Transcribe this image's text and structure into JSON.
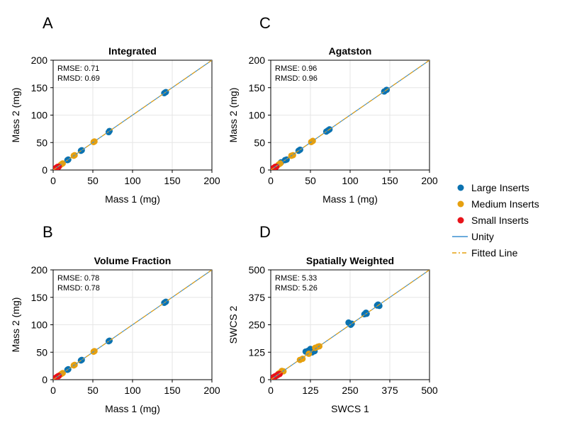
{
  "colors": {
    "large": "#0b72b0",
    "medium": "#e6a00f",
    "small": "#e8131a",
    "unity": "#3b8fd0",
    "fitted": "#e6a00f"
  },
  "legend": {
    "entries": [
      {
        "key": "large",
        "label": "Large Inserts",
        "kind": "marker"
      },
      {
        "key": "medium",
        "label": "Medium Inserts",
        "kind": "marker"
      },
      {
        "key": "small",
        "label": "Small Inserts",
        "kind": "marker"
      },
      {
        "key": "unity",
        "label": "Unity",
        "kind": "line"
      },
      {
        "key": "fitted",
        "label": "Fitted Line",
        "kind": "dashdot"
      }
    ]
  },
  "chart_data": [
    {
      "panel_label": "A",
      "type": "scatter",
      "title": "Integrated",
      "xlabel": "Mass 1 (mg)",
      "ylabel": "Mass 2 (mg)",
      "xlim": [
        0,
        200
      ],
      "ylim": [
        0,
        200
      ],
      "xticks": [
        0,
        50,
        100,
        150,
        200
      ],
      "yticks": [
        0,
        50,
        100,
        150,
        200
      ],
      "stats": [
        "RMSE: 0.71",
        "RMSD: 0.69"
      ],
      "grid": true,
      "series": [
        {
          "group": "large",
          "name": "Large Inserts",
          "x": [
            18,
            19,
            35,
            36,
            70,
            71,
            140,
            142
          ],
          "y": [
            18,
            19,
            35,
            36,
            69,
            71,
            140,
            142
          ]
        },
        {
          "group": "medium",
          "name": "Medium Inserts",
          "x": [
            10,
            12,
            26,
            27,
            51,
            52
          ],
          "y": [
            10,
            12,
            26,
            27,
            51,
            52
          ]
        },
        {
          "group": "small",
          "name": "Small Inserts",
          "x": [
            2,
            3,
            4,
            5,
            6,
            7
          ],
          "y": [
            2,
            3,
            4,
            5,
            6,
            6
          ]
        }
      ]
    },
    {
      "panel_label": "C",
      "type": "scatter",
      "title": "Agatston",
      "xlabel": "Mass 1 (mg)",
      "ylabel": "Mass 2 (mg)",
      "xlim": [
        0,
        200
      ],
      "ylim": [
        0,
        200
      ],
      "xticks": [
        0,
        50,
        100,
        150,
        200
      ],
      "yticks": [
        0,
        50,
        100,
        150,
        200
      ],
      "stats": [
        "RMSE: 0.96",
        "RMSD: 0.96"
      ],
      "grid": true,
      "series": [
        {
          "group": "large",
          "name": "Large Inserts",
          "x": [
            13,
            18,
            20,
            35,
            37,
            70,
            72,
            74,
            143,
            146
          ],
          "y": [
            14,
            18,
            19,
            35,
            37,
            70,
            72,
            74,
            143,
            146
          ]
        },
        {
          "group": "medium",
          "name": "Medium Inserts",
          "x": [
            10,
            12,
            26,
            28,
            51,
            53
          ],
          "y": [
            10,
            12,
            26,
            27,
            51,
            53
          ]
        },
        {
          "group": "small",
          "name": "Small Inserts",
          "x": [
            2,
            3,
            4,
            5,
            6,
            7
          ],
          "y": [
            2,
            3,
            4,
            5,
            6,
            6
          ]
        }
      ]
    },
    {
      "panel_label": "B",
      "type": "scatter",
      "title": "Volume Fraction",
      "xlabel": "Mass 1 (mg)",
      "ylabel": "Mass 2 (mg)",
      "xlim": [
        0,
        200
      ],
      "ylim": [
        0,
        200
      ],
      "xticks": [
        0,
        50,
        100,
        150,
        200
      ],
      "yticks": [
        0,
        50,
        100,
        150,
        200
      ],
      "stats": [
        "RMSE: 0.78",
        "RMSD: 0.78"
      ],
      "grid": true,
      "series": [
        {
          "group": "large",
          "name": "Large Inserts",
          "x": [
            18,
            19,
            35,
            36,
            70,
            71,
            140,
            142
          ],
          "y": [
            18,
            19,
            35,
            36,
            70,
            71,
            140,
            142
          ]
        },
        {
          "group": "medium",
          "name": "Medium Inserts",
          "x": [
            10,
            12,
            26,
            27,
            51,
            52
          ],
          "y": [
            10,
            12,
            26,
            27,
            51,
            52
          ]
        },
        {
          "group": "small",
          "name": "Small Inserts",
          "x": [
            2,
            3,
            4,
            5,
            6,
            7
          ],
          "y": [
            2,
            3,
            4,
            5,
            6,
            7
          ]
        }
      ]
    },
    {
      "panel_label": "D",
      "type": "scatter",
      "title": "Spatially Weighted",
      "xlabel": "SWCS 1",
      "ylabel": "SWCS 2",
      "xlim": [
        0,
        500
      ],
      "ylim": [
        0,
        500
      ],
      "xticks": [
        0,
        125,
        250,
        375,
        500
      ],
      "yticks": [
        0,
        125,
        250,
        375,
        500
      ],
      "stats": [
        "RMSE: 5.33",
        "RMSD: 5.26"
      ],
      "grid": true,
      "series": [
        {
          "group": "large",
          "name": "Large Inserts",
          "x": [
            110,
            118,
            125,
            130,
            138,
            245,
            252,
            255,
            295,
            300,
            302,
            335,
            338,
            342
          ],
          "y": [
            128,
            132,
            140,
            124,
            130,
            260,
            250,
            255,
            298,
            305,
            300,
            338,
            342,
            336
          ]
        },
        {
          "group": "medium",
          "name": "Medium Inserts",
          "x": [
            25,
            30,
            35,
            40,
            92,
            100,
            140,
            148,
            153,
            120
          ],
          "y": [
            28,
            32,
            40,
            38,
            90,
            95,
            145,
            150,
            152,
            118
          ]
        },
        {
          "group": "small",
          "name": "Small Inserts",
          "x": [
            5,
            8,
            10,
            12,
            15,
            18,
            20,
            22,
            25,
            28
          ],
          "y": [
            6,
            10,
            12,
            14,
            16,
            18,
            20,
            22,
            24,
            26
          ]
        }
      ]
    }
  ]
}
